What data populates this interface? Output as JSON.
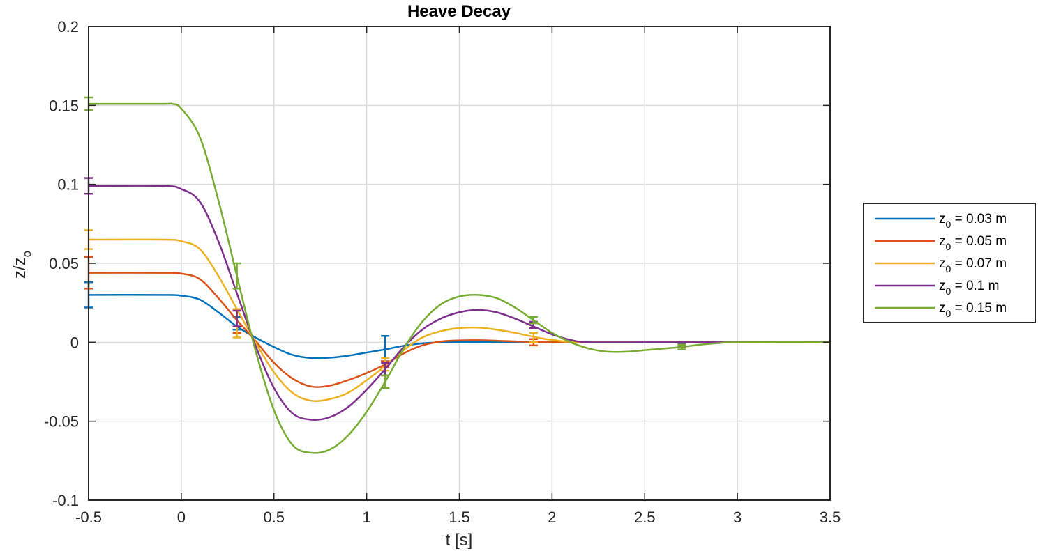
{
  "chart_data": {
    "type": "line",
    "title": "Heave Decay",
    "xlabel": "t [s]",
    "ylabel_main": "z/z",
    "ylabel_sub": "o",
    "xlim": [
      -0.5,
      3.5
    ],
    "ylim": [
      -0.1,
      0.2
    ],
    "xticks": [
      -0.5,
      0,
      0.5,
      1,
      1.5,
      2,
      2.5,
      3,
      3.5
    ],
    "xtick_labels": [
      "-0.5",
      "0",
      "0.5",
      "1",
      "1.5",
      "2",
      "2.5",
      "3",
      "3.5"
    ],
    "yticks": [
      -0.1,
      -0.05,
      0,
      0.05,
      0.1,
      0.15,
      0.2
    ],
    "ytick_labels": [
      "-0.1",
      "-0.05",
      "0",
      "0.05",
      "0.1",
      "0.15",
      "0.2"
    ],
    "grid": true,
    "legend_position": "outside-right",
    "series": [
      {
        "legend_main": "z",
        "legend_sub": "0",
        "legend_rest": " = 0.03 m",
        "color": "#0072BD",
        "points": [
          [
            -0.5,
            0.03
          ],
          [
            -0.1,
            0.03
          ],
          [
            0.0,
            0.0295
          ],
          [
            0.1,
            0.027
          ],
          [
            0.2,
            0.019
          ],
          [
            0.3,
            0.01
          ],
          [
            0.4,
            0.003
          ],
          [
            0.5,
            -0.003
          ],
          [
            0.6,
            -0.008
          ],
          [
            0.7,
            -0.01
          ],
          [
            0.8,
            -0.0098
          ],
          [
            0.9,
            -0.0085
          ],
          [
            1.0,
            -0.0065
          ],
          [
            1.1,
            -0.0045
          ],
          [
            1.2,
            -0.0022
          ],
          [
            1.3,
            -0.0007
          ],
          [
            1.4,
            0.0
          ],
          [
            1.5,
            0.0002
          ],
          [
            1.7,
            0.0002
          ],
          [
            2.0,
            0.0
          ],
          [
            2.5,
            0.0
          ],
          [
            3.0,
            0.0
          ],
          [
            3.5,
            0.0
          ]
        ],
        "errorbars": [
          [
            -0.5,
            0.03,
            0.008
          ],
          [
            0.3,
            0.012,
            0.004
          ],
          [
            1.1,
            -0.004,
            0.008
          ]
        ]
      },
      {
        "legend_main": "z",
        "legend_sub": "0",
        "legend_rest": " = 0.05 m",
        "color": "#D95319",
        "points": [
          [
            -0.5,
            0.044
          ],
          [
            -0.1,
            0.044
          ],
          [
            0.0,
            0.0435
          ],
          [
            0.1,
            0.04
          ],
          [
            0.2,
            0.028
          ],
          [
            0.3,
            0.014
          ],
          [
            0.4,
            0.001
          ],
          [
            0.5,
            -0.013
          ],
          [
            0.6,
            -0.023
          ],
          [
            0.7,
            -0.028
          ],
          [
            0.8,
            -0.0275
          ],
          [
            0.9,
            -0.024
          ],
          [
            1.0,
            -0.0195
          ],
          [
            1.1,
            -0.014
          ],
          [
            1.2,
            -0.007
          ],
          [
            1.3,
            -0.002
          ],
          [
            1.4,
            0.0005
          ],
          [
            1.5,
            0.0012
          ],
          [
            1.6,
            0.0013
          ],
          [
            1.7,
            0.001
          ],
          [
            1.9,
            0.0002
          ],
          [
            2.2,
            0.0
          ],
          [
            3.0,
            0.0
          ],
          [
            3.5,
            0.0
          ]
        ],
        "errorbars": [
          [
            -0.5,
            0.044,
            0.01
          ],
          [
            0.3,
            0.008,
            0.002
          ],
          [
            1.1,
            -0.014,
            0.002
          ],
          [
            1.9,
            0.0,
            0.002
          ]
        ]
      },
      {
        "legend_main": "z",
        "legend_sub": "0",
        "legend_rest": " = 0.07 m",
        "color": "#EDB120",
        "points": [
          [
            -0.5,
            0.065
          ],
          [
            -0.1,
            0.065
          ],
          [
            0.0,
            0.064
          ],
          [
            0.1,
            0.059
          ],
          [
            0.2,
            0.042
          ],
          [
            0.3,
            0.021
          ],
          [
            0.4,
            0.0
          ],
          [
            0.5,
            -0.019
          ],
          [
            0.6,
            -0.032
          ],
          [
            0.7,
            -0.037
          ],
          [
            0.8,
            -0.036
          ],
          [
            0.9,
            -0.032
          ],
          [
            1.0,
            -0.024
          ],
          [
            1.1,
            -0.015
          ],
          [
            1.2,
            -0.005
          ],
          [
            1.3,
            0.003
          ],
          [
            1.4,
            0.007
          ],
          [
            1.5,
            0.009
          ],
          [
            1.6,
            0.0093
          ],
          [
            1.7,
            0.008
          ],
          [
            1.8,
            0.006
          ],
          [
            1.9,
            0.0035
          ],
          [
            2.0,
            0.0015
          ],
          [
            2.2,
            0.0
          ],
          [
            3.0,
            0.0
          ],
          [
            3.5,
            0.0
          ]
        ],
        "errorbars": [
          [
            -0.5,
            0.065,
            0.006
          ],
          [
            0.3,
            0.012,
            0.009
          ],
          [
            1.1,
            -0.014,
            0.004
          ],
          [
            1.9,
            0.003,
            0.003
          ]
        ]
      },
      {
        "legend_main": "z",
        "legend_sub": "0",
        "legend_rest": " = 0.1 m",
        "color": "#7E2F8E",
        "points": [
          [
            -0.5,
            0.099
          ],
          [
            -0.1,
            0.099
          ],
          [
            0.0,
            0.097
          ],
          [
            0.1,
            0.089
          ],
          [
            0.2,
            0.064
          ],
          [
            0.3,
            0.031
          ],
          [
            0.4,
            -0.002
          ],
          [
            0.5,
            -0.029
          ],
          [
            0.6,
            -0.045
          ],
          [
            0.7,
            -0.049
          ],
          [
            0.8,
            -0.0475
          ],
          [
            0.9,
            -0.041
          ],
          [
            1.0,
            -0.03
          ],
          [
            1.1,
            -0.017
          ],
          [
            1.2,
            -0.003
          ],
          [
            1.3,
            0.008
          ],
          [
            1.4,
            0.015
          ],
          [
            1.5,
            0.019
          ],
          [
            1.6,
            0.0205
          ],
          [
            1.7,
            0.019
          ],
          [
            1.8,
            0.015
          ],
          [
            1.9,
            0.01
          ],
          [
            2.0,
            0.005
          ],
          [
            2.1,
            0.0015
          ],
          [
            2.2,
            0.0
          ],
          [
            2.5,
            0.0
          ],
          [
            3.0,
            0.0
          ],
          [
            3.5,
            0.0
          ]
        ],
        "errorbars": [
          [
            -0.5,
            0.099,
            0.005
          ],
          [
            0.3,
            0.015,
            0.005
          ],
          [
            1.1,
            -0.017,
            0.004
          ],
          [
            1.9,
            0.011,
            0.002
          ],
          [
            2.7,
            -0.002,
            0.001
          ]
        ]
      },
      {
        "legend_main": "z",
        "legend_sub": "0",
        "legend_rest": " = 0.15 m",
        "color": "#77AC30",
        "points": [
          [
            -0.5,
            0.151
          ],
          [
            -0.1,
            0.151
          ],
          [
            -0.05,
            0.151
          ],
          [
            0.0,
            0.148
          ],
          [
            0.1,
            0.13
          ],
          [
            0.2,
            0.09
          ],
          [
            0.3,
            0.042
          ],
          [
            0.4,
            -0.005
          ],
          [
            0.5,
            -0.043
          ],
          [
            0.6,
            -0.065
          ],
          [
            0.7,
            -0.07
          ],
          [
            0.8,
            -0.068
          ],
          [
            0.9,
            -0.059
          ],
          [
            1.0,
            -0.044
          ],
          [
            1.1,
            -0.025
          ],
          [
            1.2,
            -0.004
          ],
          [
            1.3,
            0.013
          ],
          [
            1.4,
            0.024
          ],
          [
            1.5,
            0.029
          ],
          [
            1.6,
            0.03
          ],
          [
            1.7,
            0.028
          ],
          [
            1.8,
            0.022
          ],
          [
            1.9,
            0.014
          ],
          [
            2.0,
            0.006
          ],
          [
            2.1,
            0.0
          ],
          [
            2.2,
            -0.004
          ],
          [
            2.3,
            -0.006
          ],
          [
            2.4,
            -0.006
          ],
          [
            2.5,
            -0.005
          ],
          [
            2.6,
            -0.004
          ],
          [
            2.7,
            -0.003
          ],
          [
            2.8,
            -0.0015
          ],
          [
            2.9,
            -0.0005
          ],
          [
            3.0,
            0.0
          ],
          [
            3.5,
            0.0
          ]
        ],
        "errorbars": [
          [
            -0.5,
            0.151,
            0.004
          ],
          [
            0.3,
            0.042,
            0.008
          ],
          [
            1.1,
            -0.025,
            0.004
          ],
          [
            1.9,
            0.014,
            0.002
          ],
          [
            2.7,
            -0.003,
            0.0015
          ]
        ]
      }
    ]
  }
}
